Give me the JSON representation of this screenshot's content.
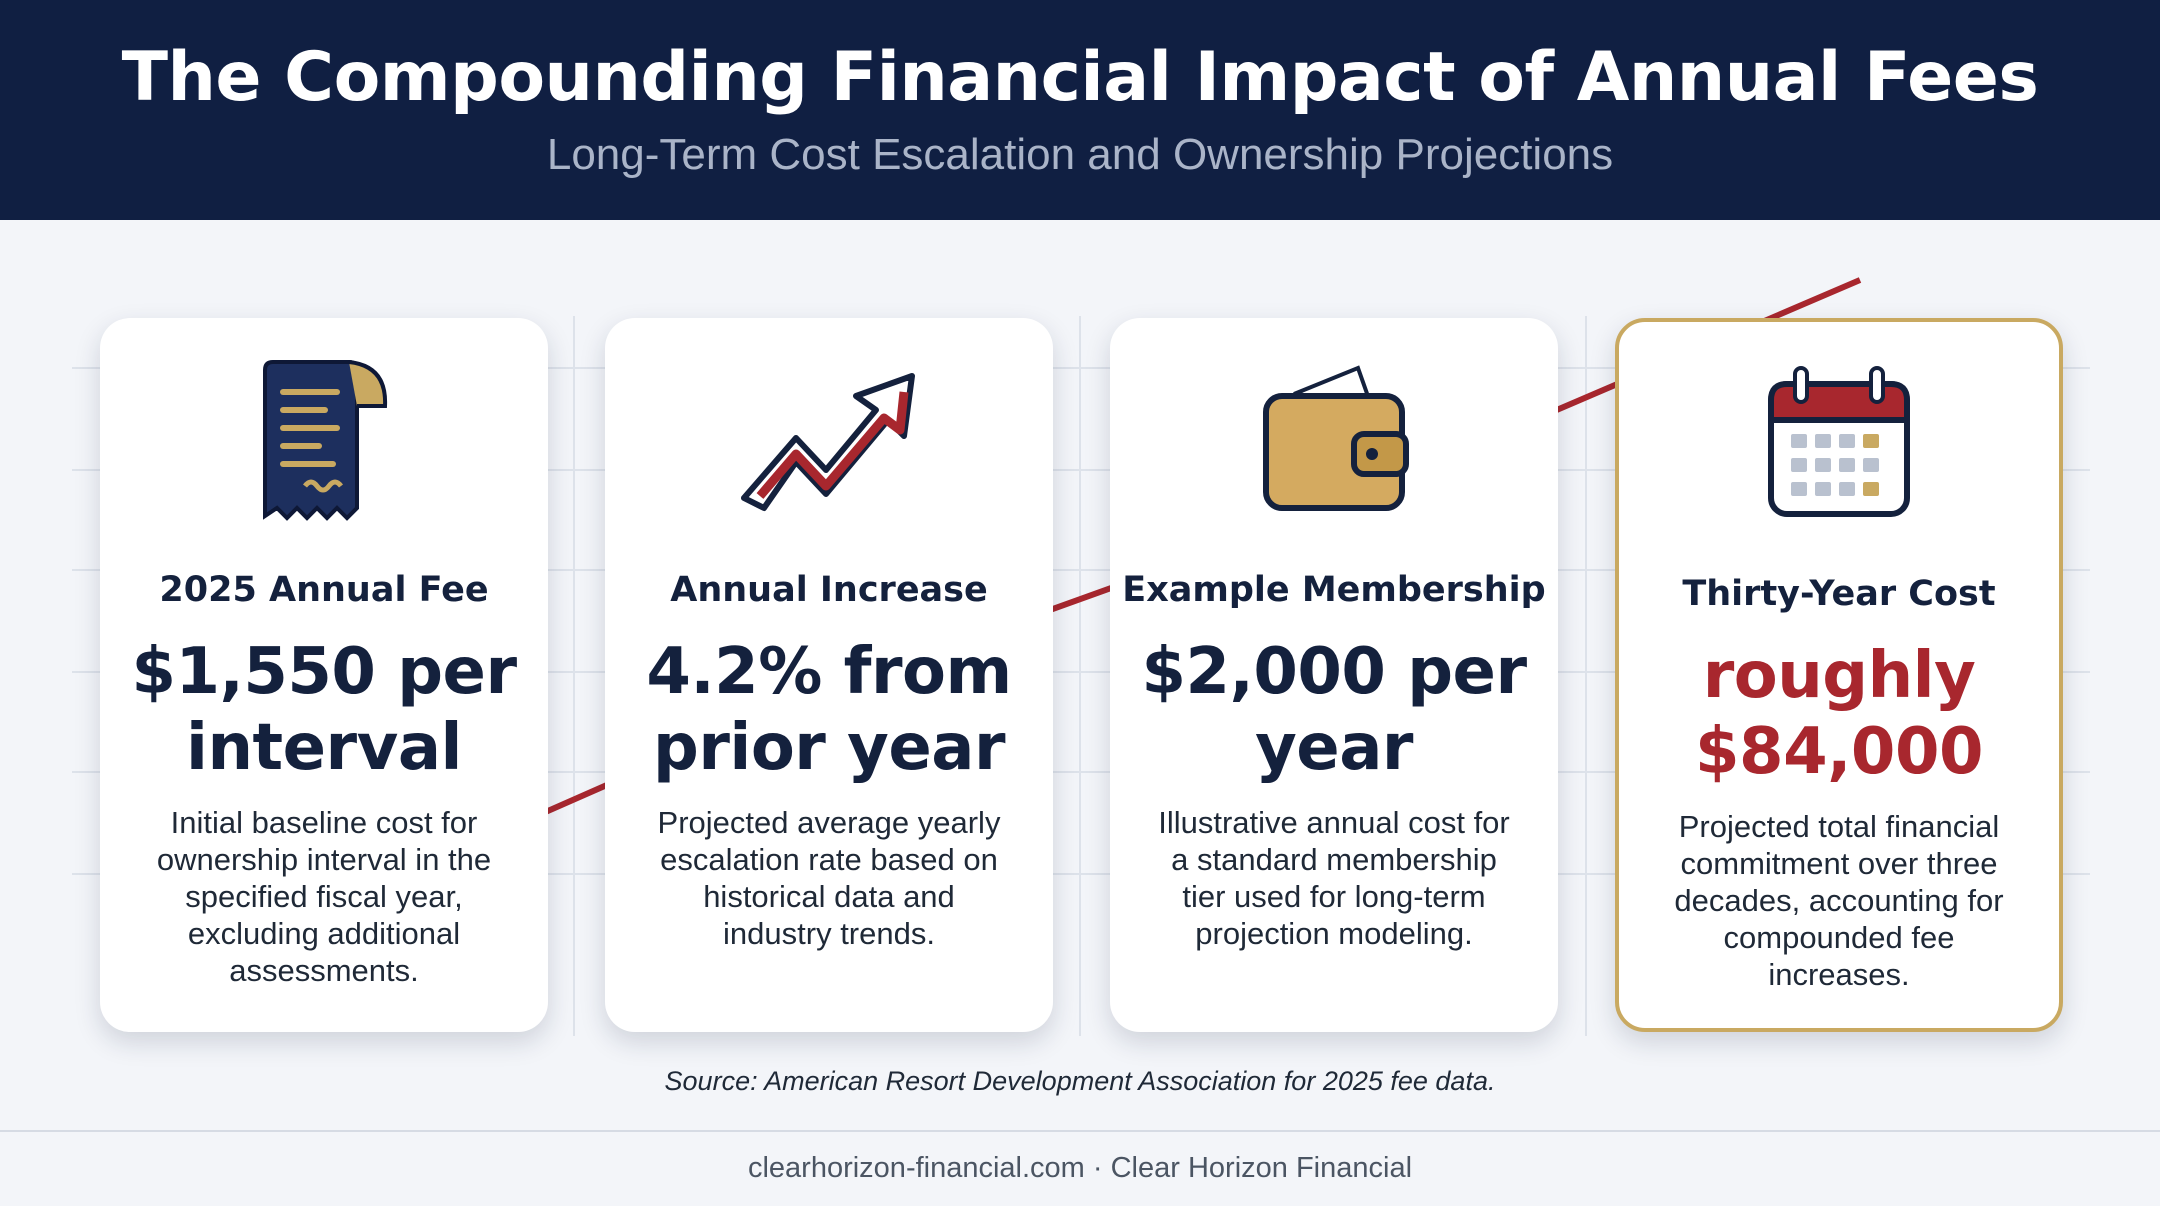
{
  "header": {
    "title": "The Compounding Financial Impact of Annual Fees",
    "subtitle": "Long-Term Cost Escalation and Ownership Projections"
  },
  "cards": [
    {
      "icon": "receipt-icon",
      "label": "2025 Annual Fee",
      "value": "$1,550 per interval",
      "description": "Initial baseline cost for ownership interval in the specified fiscal year, excluding additional assessments."
    },
    {
      "icon": "trending-up-arrow-icon",
      "label": "Annual Increase",
      "value": "4.2% from prior year",
      "description": "Projected average yearly escalation rate based on historical data and industry trends."
    },
    {
      "icon": "wallet-icon",
      "label": "Example Membership",
      "value": "$2,000 per year",
      "description": "Illustrative annual cost for a standard membership tier used for long-term projection modeling."
    },
    {
      "icon": "calendar-icon",
      "label": "Thirty-Year Cost",
      "value": "roughly $84,000",
      "description": "Projected total financial commitment over three decades, accounting for compounded fee increases."
    }
  ],
  "source": "Source: American Resort Development Association for 2025 fee data.",
  "footer": "clearhorizon-financial.com · Clear Horizon Financial",
  "colors": {
    "navy": "#101f42",
    "accent_red": "#a8272e",
    "gold": "#c9a961",
    "background": "#f3f5f9"
  }
}
